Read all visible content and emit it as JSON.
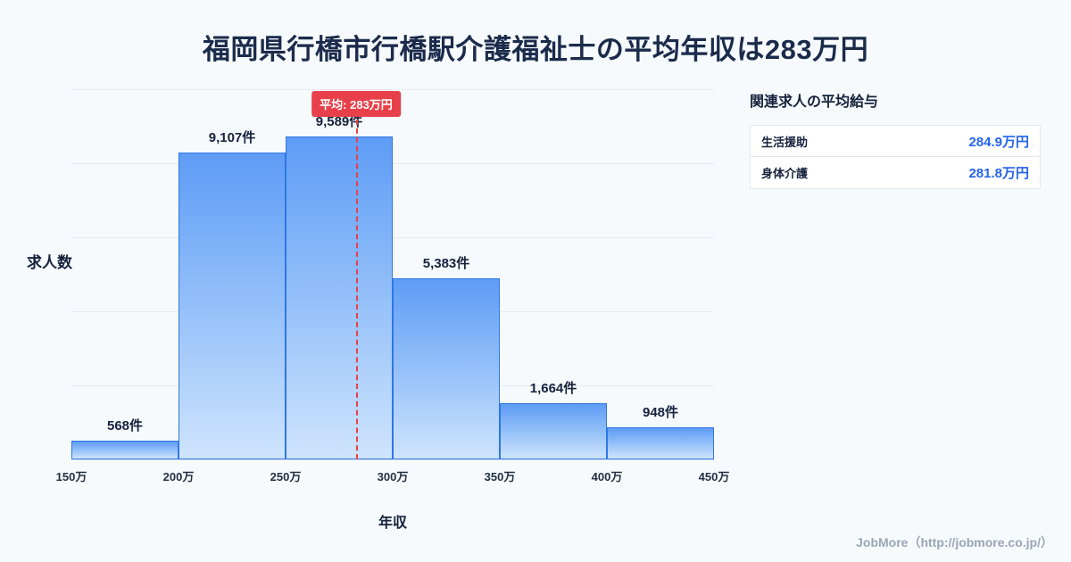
{
  "title": "福岡県行橋市行橋駅介護福祉士の平均年収は283万円",
  "chart_data": {
    "type": "bar",
    "title": "福岡県行橋市行橋駅介護福祉士の平均年収は283万円",
    "xlabel": "年収",
    "ylabel": "求人数",
    "bin_edge_labels": [
      "150万",
      "200万",
      "250万",
      "300万",
      "350万",
      "400万",
      "450万"
    ],
    "bin_edges_man_yen": [
      150,
      200,
      250,
      300,
      350,
      400,
      450
    ],
    "values": [
      568,
      9107,
      9589,
      5383,
      1664,
      948
    ],
    "value_labels": [
      "568件",
      "9,107件",
      "9,589件",
      "5,383件",
      "1,664件",
      "948件"
    ],
    "average_line": {
      "value_man_yen": 283,
      "label": "平均: 283万円"
    },
    "ylim": [
      0,
      11000
    ],
    "grid": true,
    "legend": "none"
  },
  "side_panel": {
    "heading": "関連求人の平均給与",
    "rows": [
      {
        "label": "生活援助",
        "value": "284.9万円"
      },
      {
        "label": "身体介護",
        "value": "281.8万円"
      }
    ]
  },
  "footer": {
    "credit": "JobMore（http://jobmore.co.jp/）"
  },
  "colors": {
    "background": "#f7fafd",
    "title_navy": "#1b2b4b",
    "bar_top": "#5e9cf6",
    "bar_bottom": "#cfe4fd",
    "bar_border": "#2e77e5",
    "average_red": "#e8404b",
    "value_blue": "#2563eb",
    "gridline": "#e4e9f2",
    "credit_gray": "#9aa5b5"
  }
}
